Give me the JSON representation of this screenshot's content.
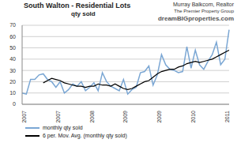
{
  "chart_data": {
    "type": "line",
    "title": "South Walton - Residential Lots",
    "subtitle": "qty sold",
    "annotations": [
      "Murray Balkcom, Realtor",
      "The Premier Property Group",
      "dreamBIGproperties.com"
    ],
    "categories": [
      "2007",
      null,
      null,
      null,
      null,
      null,
      null,
      null,
      "2007",
      null,
      null,
      null,
      null,
      null,
      null,
      null,
      "2008",
      null,
      null,
      null,
      null,
      null,
      null,
      null,
      "2009",
      null,
      null,
      null,
      null,
      null,
      null,
      null,
      "2009",
      null,
      null,
      null,
      null,
      null,
      null,
      null,
      "2010",
      null,
      null,
      null,
      null,
      null,
      null,
      null,
      "2011",
      null
    ],
    "series": [
      {
        "name": "monthly qty sold",
        "color": "#7ba7d4",
        "values": [
          10,
          9,
          22,
          22,
          26,
          27,
          22,
          20,
          15,
          20,
          10,
          13,
          18,
          16,
          20,
          12,
          15,
          19,
          12,
          28,
          20,
          16,
          14,
          12,
          22,
          9,
          13,
          15,
          28,
          29,
          34,
          17,
          26,
          44,
          35,
          31,
          30,
          28,
          29,
          51,
          32,
          48,
          35,
          31,
          38,
          44,
          55,
          35,
          40,
          66
        ]
      },
      {
        "name": "6 per. Mov. Avg. (monthly qty sold)",
        "color": "#000000",
        "values": [
          null,
          null,
          null,
          null,
          null,
          19,
          21,
          23,
          22,
          21,
          19,
          18,
          17,
          16,
          16,
          15,
          16,
          16,
          18,
          17,
          17,
          16,
          18,
          16,
          14,
          13,
          14,
          16,
          18,
          20,
          21,
          24,
          27,
          29,
          30,
          31,
          31,
          33,
          34,
          36,
          37,
          38,
          37,
          38,
          39,
          40,
          42,
          44,
          46,
          48
        ]
      }
    ],
    "ylim": [
      0,
      70
    ],
    "yticks": [
      0,
      10,
      20,
      30,
      40,
      50,
      60,
      70
    ],
    "grid": true,
    "legend": "bottom-left"
  }
}
